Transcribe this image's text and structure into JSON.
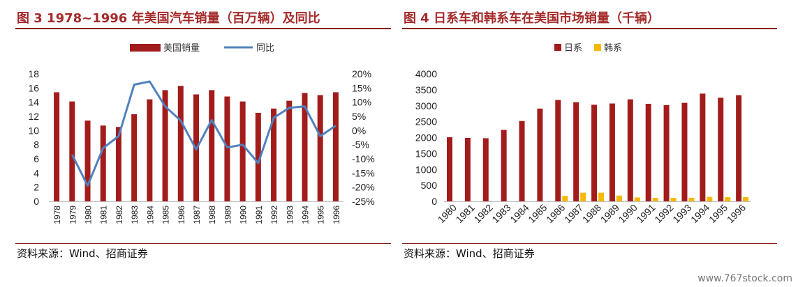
{
  "left": {
    "title": "图 3 1978~1996 年美国汽车销量（百万辆）及同比",
    "source": "资料来源：Wind、招商证券"
  },
  "right": {
    "title": "图 4  日系车和韩系车在美国市场销量（千辆）",
    "source": "资料来源：Wind、招商证券"
  },
  "watermark": "www.767stock.com",
  "colors": {
    "bar": "#a31c1c",
    "line": "#4f81bd",
    "korea": "#f7b800",
    "title": "#a52a2a"
  },
  "chart_data": [
    {
      "type": "bar",
      "combo": "bar+line (dual axis)",
      "title": "图 3 1978~1996 年美国汽车销量（百万辆）及同比",
      "categories": [
        "1978",
        "1979",
        "1980",
        "1981",
        "1982",
        "1983",
        "1984",
        "1985",
        "1986",
        "1987",
        "1988",
        "1989",
        "1990",
        "1991",
        "1992",
        "1993",
        "1994",
        "1995",
        "1996"
      ],
      "series": [
        {
          "name": "美国销量",
          "kind": "bar",
          "axis": "left",
          "values": [
            15.4,
            14.1,
            11.4,
            10.7,
            10.5,
            12.3,
            14.4,
            15.7,
            16.3,
            15.1,
            15.7,
            14.8,
            14.1,
            12.5,
            13.1,
            14.2,
            15.3,
            15.0,
            15.4
          ]
        },
        {
          "name": "同比",
          "kind": "line",
          "axis": "right",
          "unit": "%",
          "values": [
            null,
            -8.5,
            -19.5,
            -6.2,
            -2.0,
            16.2,
            17.3,
            8.5,
            3.5,
            -6.7,
            3.7,
            -6.0,
            -5.0,
            -11.5,
            4.5,
            8.0,
            8.5,
            -2.0,
            1.7
          ]
        }
      ],
      "left_axis": {
        "min": 0,
        "max": 18,
        "ticks": [
          "0",
          "2",
          "4",
          "6",
          "8",
          "10",
          "12",
          "14",
          "16",
          "18"
        ]
      },
      "right_axis": {
        "min": -25,
        "max": 20,
        "ticks": [
          "-25%",
          "-20%",
          "-15%",
          "-10%",
          "-5%",
          "0%",
          "5%",
          "10%",
          "15%",
          "20%"
        ]
      },
      "legend": [
        "美国销量",
        "同比"
      ],
      "legend_position": "top",
      "grid": false
    },
    {
      "type": "bar",
      "title": "图 4  日系车和韩系车在美国市场销量（千辆）",
      "categories": [
        "1980",
        "1981",
        "1982",
        "1983",
        "1984",
        "1985",
        "1986",
        "1987",
        "1988",
        "1989",
        "1990",
        "1991",
        "1992",
        "1993",
        "1994",
        "1995",
        "1996"
      ],
      "series": [
        {
          "name": "日系",
          "values": [
            2010,
            1990,
            1980,
            2240,
            2520,
            2910,
            3180,
            3110,
            3030,
            3070,
            3200,
            3060,
            3020,
            3090,
            3380,
            3250,
            3330
          ]
        },
        {
          "name": "韩系",
          "values": [
            0,
            0,
            0,
            0,
            0,
            0,
            170,
            270,
            270,
            180,
            120,
            110,
            110,
            110,
            140,
            130,
            130
          ]
        }
      ],
      "y_axis": {
        "min": 0,
        "max": 4000,
        "ticks": [
          "0",
          "500",
          "1000",
          "1500",
          "2000",
          "2500",
          "3000",
          "3500",
          "4000"
        ]
      },
      "legend": [
        "日系",
        "韩系"
      ],
      "legend_position": "top",
      "grid": false
    }
  ]
}
